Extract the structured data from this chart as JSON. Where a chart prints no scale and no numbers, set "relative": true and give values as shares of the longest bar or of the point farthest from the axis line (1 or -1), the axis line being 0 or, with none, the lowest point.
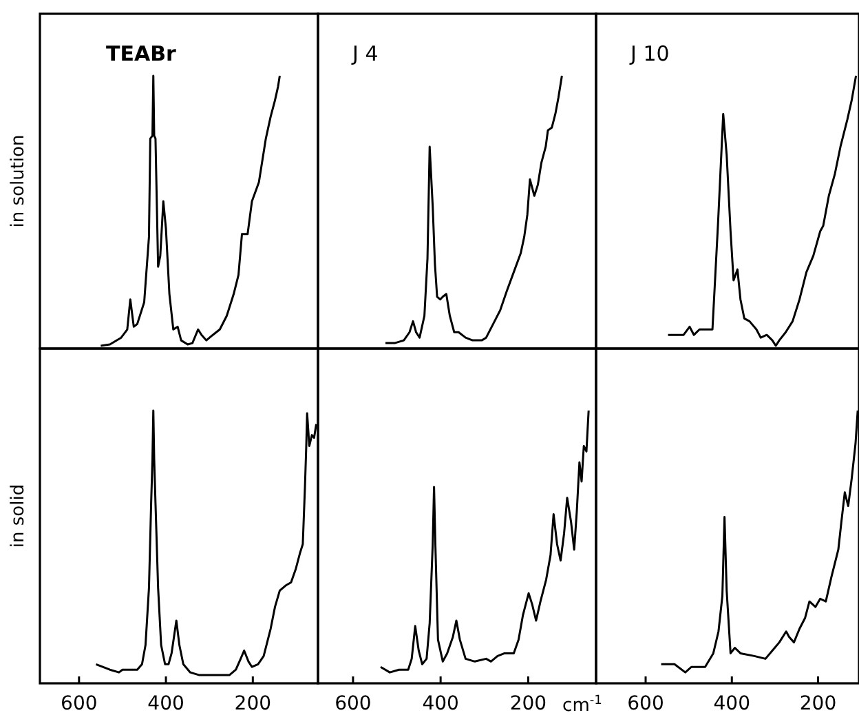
{
  "chart_data": [
    {
      "type": "line",
      "relative": true,
      "title": "TEABr",
      "ylabel": "in solution",
      "color": "#000000",
      "xlim": [
        690,
        50
      ],
      "tick_labels": false,
      "x": [
        550,
        529,
        503,
        489,
        482,
        474,
        466,
        450,
        439,
        436,
        431,
        429,
        427,
        424,
        418,
        413,
        406,
        400,
        392,
        383,
        373,
        365,
        350,
        339,
        326,
        318,
        307,
        292,
        276,
        260,
        244,
        233,
        225,
        212,
        202,
        186,
        170,
        159,
        149,
        142,
        138
      ],
      "values": [
        0.01,
        0.015,
        0.04,
        0.07,
        0.18,
        0.08,
        0.09,
        0.17,
        0.41,
        0.77,
        0.78,
        1.0,
        0.78,
        0.77,
        0.3,
        0.34,
        0.54,
        0.44,
        0.2,
        0.07,
        0.08,
        0.03,
        0.015,
        0.02,
        0.07,
        0.05,
        0.03,
        0.05,
        0.07,
        0.12,
        0.2,
        0.27,
        0.42,
        0.42,
        0.54,
        0.61,
        0.77,
        0.85,
        0.91,
        0.96,
        1.0
      ]
    },
    {
      "type": "line",
      "relative": true,
      "title": "J 4",
      "color": "#000000",
      "xlim": [
        680,
        45
      ],
      "tick_labels": false,
      "x": [
        526,
        505,
        484,
        471,
        463,
        456,
        448,
        437,
        430,
        425,
        418,
        413,
        408,
        401,
        395,
        387,
        379,
        369,
        359,
        343,
        327,
        306,
        296,
        280,
        264,
        249,
        233,
        217,
        209,
        202,
        196,
        186,
        178,
        170,
        160,
        155,
        146,
        138,
        131,
        123
      ],
      "values": [
        0.02,
        0.02,
        0.03,
        0.06,
        0.1,
        0.06,
        0.04,
        0.12,
        0.33,
        0.74,
        0.52,
        0.31,
        0.19,
        0.18,
        0.19,
        0.2,
        0.12,
        0.06,
        0.06,
        0.04,
        0.03,
        0.03,
        0.04,
        0.09,
        0.14,
        0.21,
        0.28,
        0.35,
        0.41,
        0.49,
        0.62,
        0.56,
        0.6,
        0.68,
        0.74,
        0.8,
        0.81,
        0.86,
        0.92,
        1.0
      ]
    },
    {
      "type": "line",
      "relative": true,
      "title": "J 10",
      "color": "#000000",
      "xlim": [
        715,
        105
      ],
      "tick_labels": false,
      "x": [
        548,
        512,
        498,
        488,
        475,
        459,
        445,
        432,
        420,
        412,
        403,
        396,
        387,
        380,
        371,
        359,
        343,
        333,
        319,
        306,
        298,
        290,
        275,
        259,
        243,
        227,
        211,
        195,
        188,
        175,
        161,
        148,
        132,
        122,
        112
      ],
      "values": [
        0.05,
        0.05,
        0.08,
        0.05,
        0.07,
        0.07,
        0.07,
        0.46,
        0.86,
        0.71,
        0.43,
        0.25,
        0.29,
        0.18,
        0.11,
        0.1,
        0.07,
        0.04,
        0.05,
        0.03,
        0.01,
        0.03,
        0.06,
        0.1,
        0.18,
        0.28,
        0.34,
        0.43,
        0.45,
        0.56,
        0.64,
        0.74,
        0.84,
        0.91,
        1.0
      ]
    },
    {
      "type": "line",
      "relative": true,
      "ylabel": "in solid",
      "color": "#000000",
      "xlim": [
        690,
        50
      ],
      "xticks": [
        600,
        400,
        200
      ],
      "tick_labels": "x",
      "x": [
        561,
        529,
        508,
        500,
        487,
        466,
        455,
        447,
        439,
        434,
        431,
        429,
        427,
        424,
        418,
        411,
        402,
        394,
        387,
        376,
        369,
        360,
        344,
        323,
        286,
        254,
        239,
        228,
        220,
        210,
        202,
        188,
        175,
        159,
        149,
        138,
        123,
        112,
        101,
        91,
        85,
        80,
        77,
        75,
        70,
        64,
        59,
        54
      ],
      "values": [
        0.07,
        0.05,
        0.04,
        0.05,
        0.05,
        0.05,
        0.07,
        0.14,
        0.35,
        0.66,
        0.82,
        1.0,
        0.82,
        0.66,
        0.35,
        0.14,
        0.07,
        0.07,
        0.11,
        0.23,
        0.14,
        0.07,
        0.04,
        0.03,
        0.03,
        0.03,
        0.05,
        0.09,
        0.12,
        0.08,
        0.06,
        0.07,
        0.1,
        0.2,
        0.28,
        0.34,
        0.36,
        0.37,
        0.42,
        0.48,
        0.51,
        0.72,
        0.87,
        0.99,
        0.87,
        0.91,
        0.9,
        0.95
      ]
    },
    {
      "type": "line",
      "relative": true,
      "xlabel": "cm$^{-1}$",
      "color": "#000000",
      "xlim": [
        680,
        45
      ],
      "xticks": [
        600,
        400,
        200
      ],
      "tick_labels": "x",
      "x": [
        537,
        516,
        495,
        474,
        466,
        458,
        450,
        442,
        432,
        425,
        418,
        415,
        412,
        406,
        395,
        385,
        372,
        364,
        356,
        343,
        322,
        296,
        285,
        270,
        254,
        233,
        222,
        212,
        199,
        191,
        182,
        172,
        159,
        149,
        142,
        134,
        126,
        118,
        111,
        102,
        95,
        89,
        83,
        78,
        73,
        67,
        62
      ],
      "values": [
        0.06,
        0.04,
        0.05,
        0.05,
        0.09,
        0.21,
        0.12,
        0.07,
        0.09,
        0.22,
        0.51,
        0.72,
        0.51,
        0.16,
        0.08,
        0.11,
        0.17,
        0.23,
        0.16,
        0.09,
        0.08,
        0.09,
        0.08,
        0.1,
        0.11,
        0.11,
        0.16,
        0.25,
        0.33,
        0.29,
        0.23,
        0.3,
        0.38,
        0.47,
        0.62,
        0.51,
        0.45,
        0.55,
        0.68,
        0.59,
        0.49,
        0.63,
        0.81,
        0.74,
        0.87,
        0.85,
        1.0
      ]
    },
    {
      "type": "line",
      "relative": true,
      "color": "#000000",
      "xlim": [
        715,
        105
      ],
      "xticks": [
        600,
        400,
        200
      ],
      "tick_labels": "x",
      "x": [
        564,
        533,
        508,
        494,
        462,
        443,
        431,
        422,
        417,
        412,
        403,
        393,
        380,
        348,
        322,
        306,
        290,
        274,
        267,
        256,
        243,
        230,
        220,
        206,
        195,
        182,
        169,
        153,
        146,
        138,
        130,
        122,
        113,
        108
      ],
      "values": [
        0.07,
        0.07,
        0.04,
        0.06,
        0.06,
        0.11,
        0.19,
        0.32,
        0.61,
        0.34,
        0.11,
        0.13,
        0.11,
        0.1,
        0.09,
        0.12,
        0.15,
        0.19,
        0.17,
        0.15,
        0.2,
        0.24,
        0.3,
        0.28,
        0.31,
        0.3,
        0.39,
        0.49,
        0.59,
        0.7,
        0.65,
        0.75,
        0.88,
        1.0
      ]
    }
  ]
}
